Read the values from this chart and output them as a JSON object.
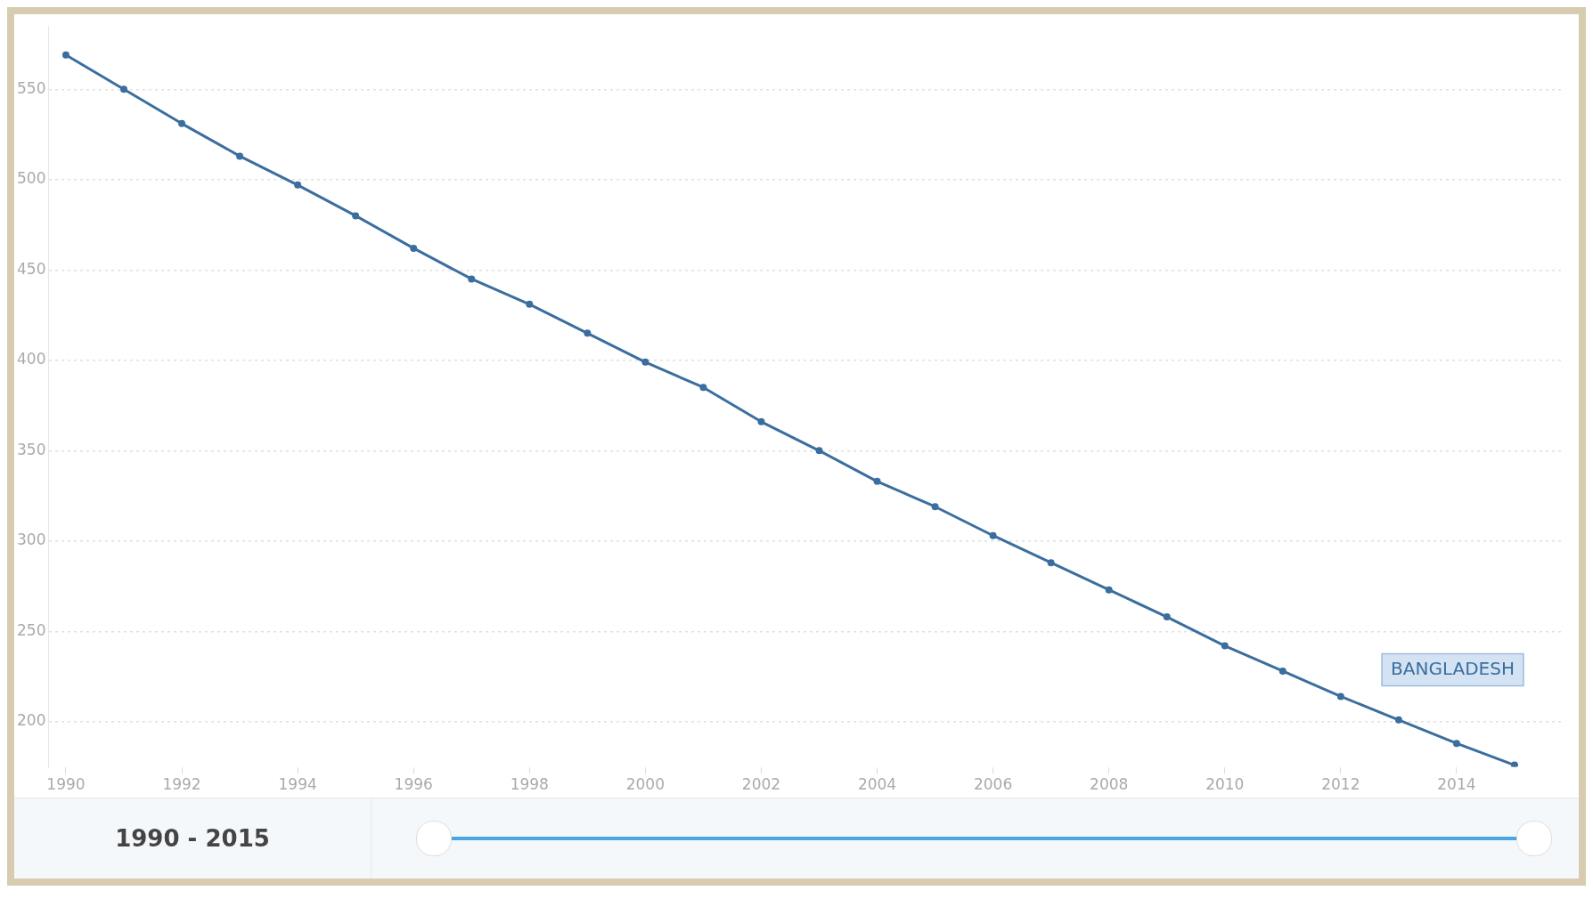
{
  "chart_data": {
    "type": "line",
    "x": [
      1990,
      1991,
      1992,
      1993,
      1994,
      1995,
      1996,
      1997,
      1998,
      1999,
      2000,
      2001,
      2002,
      2003,
      2004,
      2005,
      2006,
      2007,
      2008,
      2009,
      2010,
      2011,
      2012,
      2013,
      2014,
      2015
    ],
    "series": [
      {
        "name": "BANGLADESH",
        "color": "#3b6e9e",
        "values": [
          569,
          550,
          531,
          513,
          497,
          480,
          462,
          445,
          431,
          415,
          399,
          385,
          366,
          350,
          333,
          319,
          303,
          288,
          273,
          258,
          242,
          228,
          214,
          201,
          188,
          176
        ]
      }
    ],
    "xlim": [
      1989.7,
      2015.8
    ],
    "xticks": [
      1990,
      1992,
      1994,
      1996,
      1998,
      2000,
      2002,
      2004,
      2006,
      2008,
      2010,
      2012,
      2014
    ],
    "ylim": [
      175,
      585
    ],
    "yticks": [
      200,
      250,
      300,
      350,
      400,
      450,
      500,
      550
    ],
    "grid": "y",
    "legend": false,
    "marker": "circle",
    "line_style": "solid",
    "annotations": [
      "1990 - 2015"
    ]
  }
}
